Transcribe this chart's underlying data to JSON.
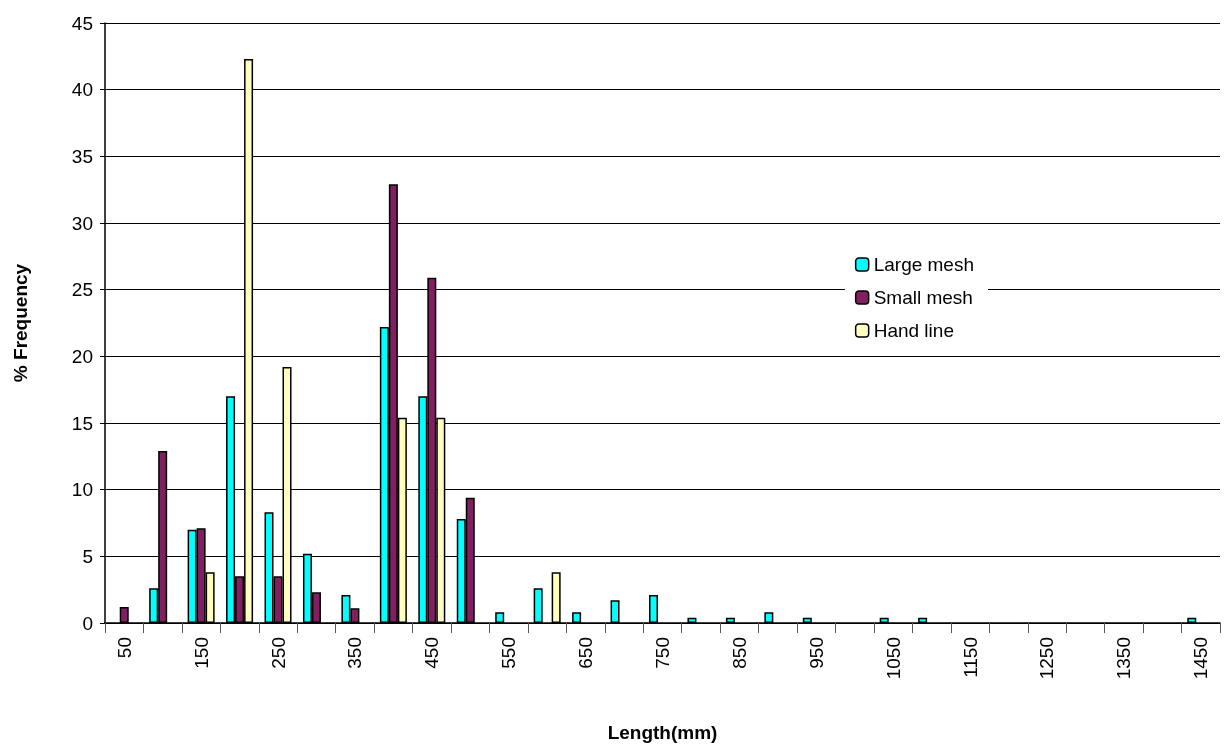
{
  "chart_data": {
    "type": "bar",
    "xlabel": "Length(mm)",
    "ylabel": "% Frequency",
    "categories": [
      "50",
      null,
      "150",
      null,
      "250",
      null,
      "350",
      null,
      "450",
      null,
      "550",
      null,
      "650",
      null,
      "750",
      null,
      "850",
      null,
      "950",
      null,
      "1050",
      null,
      "1150",
      null,
      "1250",
      null,
      "1350",
      null,
      "1450"
    ],
    "series": [
      {
        "name": "Large mesh",
        "color": "#00ffff",
        "values": [
          null,
          2.6,
          7.0,
          17.0,
          8.3,
          5.2,
          2.1,
          22.2,
          17.0,
          7.8,
          0.8,
          2.6,
          0.8,
          1.7,
          2.1,
          0.4,
          0.4,
          0.8,
          0.4,
          null,
          0.4,
          0.4,
          null,
          null,
          null,
          null,
          null,
          null,
          0.4
        ]
      },
      {
        "name": "Small mesh",
        "color": "#802060",
        "values": [
          1.2,
          12.9,
          7.1,
          3.5,
          3.5,
          2.3,
          1.1,
          32.9,
          25.9,
          9.4,
          null,
          null,
          null,
          null,
          null,
          null,
          null,
          null,
          null,
          null,
          null,
          null,
          null,
          null,
          null,
          null,
          null,
          null,
          null
        ]
      },
      {
        "name": "Hand line",
        "color": "#ffffc0",
        "values": [
          null,
          null,
          3.8,
          42.3,
          19.2,
          null,
          null,
          15.4,
          15.4,
          null,
          null,
          3.8,
          null,
          null,
          null,
          null,
          null,
          null,
          null,
          null,
          null,
          null,
          null,
          null,
          null,
          null,
          null,
          null,
          null
        ]
      }
    ],
    "ylim": [
      0,
      45
    ],
    "yticks": [
      0,
      5,
      10,
      15,
      20,
      25,
      30,
      35,
      40,
      45
    ],
    "grid": "y",
    "legend": "right"
  }
}
